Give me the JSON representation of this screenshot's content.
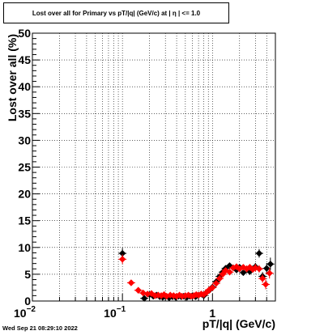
{
  "title": "Lost over all for Primary vs pT/|q| (GeV/c) at |  η  | <= 1.0",
  "footer": "Wed Sep 21 08:29:10 2022",
  "chart_data": {
    "type": "scatter",
    "title": "Lost over all for Primary vs pT/|q| (GeV/c) at |  η  | <= 1.0",
    "xlabel": "pT/|q| (GeV/c)",
    "ylabel": "Lost over all (%)",
    "xscale": "log",
    "xlim": [
      0.01,
      5
    ],
    "ylim": [
      0,
      50
    ],
    "grid": true,
    "x_ticks": [
      {
        "value": 0.01,
        "base": "10",
        "exp": "−2"
      },
      {
        "value": 0.1,
        "base": "10",
        "exp": "−1"
      },
      {
        "value": 1,
        "base": "1",
        "exp": ""
      }
    ],
    "y_ticks": [
      "0",
      "5",
      "10",
      "15",
      "20",
      "25",
      "30",
      "35",
      "40",
      "45",
      "50"
    ],
    "series": [
      {
        "color": "#000000",
        "marker": "diamond",
        "x": [
          0.1,
          0.175,
          0.2,
          0.22,
          0.24,
          0.26,
          0.28,
          0.3,
          0.33,
          0.36,
          0.39,
          0.42,
          0.45,
          0.48,
          0.52,
          0.56,
          0.6,
          0.65,
          0.7,
          0.75,
          0.8,
          0.86,
          0.92,
          1.0,
          1.1,
          1.2,
          1.3,
          1.4,
          1.55,
          1.7,
          1.85,
          2.0,
          2.2,
          2.4,
          2.6,
          2.8,
          3.0,
          3.3,
          3.6,
          4.0,
          4.4
        ],
        "y": [
          8.9,
          0.5,
          1.2,
          0.9,
          1.1,
          0.8,
          0.7,
          0.9,
          0.6,
          0.8,
          0.7,
          0.9,
          0.8,
          0.9,
          0.7,
          0.9,
          1.0,
          0.8,
          1.1,
          1.3,
          1.0,
          1.6,
          2.0,
          2.6,
          3.6,
          4.6,
          5.4,
          6.1,
          6.6,
          6.2,
          5.8,
          6.3,
          5.3,
          6.0,
          5.5,
          6.0,
          6.4,
          8.9,
          4.6,
          6.1,
          6.9
        ],
        "yerr": [
          1.0,
          0.3,
          0.3,
          0.3,
          0.3,
          0.3,
          0.3,
          0.3,
          0.3,
          0.3,
          0.3,
          0.3,
          0.3,
          0.3,
          0.3,
          0.3,
          0.3,
          0.3,
          0.3,
          0.3,
          0.3,
          0.3,
          0.3,
          0.4,
          0.4,
          0.4,
          0.5,
          0.5,
          0.5,
          0.5,
          0.5,
          0.5,
          0.5,
          0.6,
          0.6,
          0.6,
          0.7,
          0.8,
          0.8,
          1.0,
          1.2
        ]
      },
      {
        "color": "#ff0000",
        "marker": "diamond",
        "x": [
          0.1,
          0.125,
          0.15,
          0.17,
          0.19,
          0.21,
          0.23,
          0.25,
          0.27,
          0.29,
          0.31,
          0.34,
          0.37,
          0.4,
          0.43,
          0.46,
          0.5,
          0.54,
          0.58,
          0.62,
          0.66,
          0.7,
          0.75,
          0.8,
          0.86,
          0.92,
          1.0,
          1.1,
          1.2,
          1.3,
          1.4,
          1.55,
          1.7,
          1.85,
          2.0,
          2.2,
          2.4,
          2.6,
          2.8,
          3.0,
          3.3,
          3.6,
          3.9,
          4.3
        ],
        "y": [
          7.8,
          3.4,
          2.0,
          1.5,
          1.3,
          1.4,
          1.0,
          1.1,
          1.0,
          1.2,
          0.9,
          1.1,
          1.0,
          0.9,
          1.1,
          0.9,
          1.0,
          1.1,
          0.9,
          1.0,
          1.2,
          1.1,
          1.3,
          1.2,
          1.6,
          2.1,
          2.5,
          3.3,
          4.2,
          5.0,
          5.7,
          5.4,
          6.2,
          6.4,
          6.0,
          6.3,
          6.0,
          6.3,
          5.9,
          6.2,
          6.0,
          4.2,
          3.1,
          5.2
        ],
        "yerr": [
          0.9,
          0.4,
          0.3,
          0.3,
          0.3,
          0.3,
          0.3,
          0.3,
          0.3,
          0.3,
          0.3,
          0.3,
          0.3,
          0.3,
          0.3,
          0.3,
          0.3,
          0.3,
          0.3,
          0.3,
          0.3,
          0.3,
          0.3,
          0.3,
          0.3,
          0.3,
          0.4,
          0.4,
          0.4,
          0.4,
          0.5,
          0.5,
          0.5,
          0.5,
          0.5,
          0.5,
          0.6,
          0.6,
          0.6,
          0.7,
          0.7,
          0.8,
          0.9,
          1.0
        ]
      }
    ]
  }
}
